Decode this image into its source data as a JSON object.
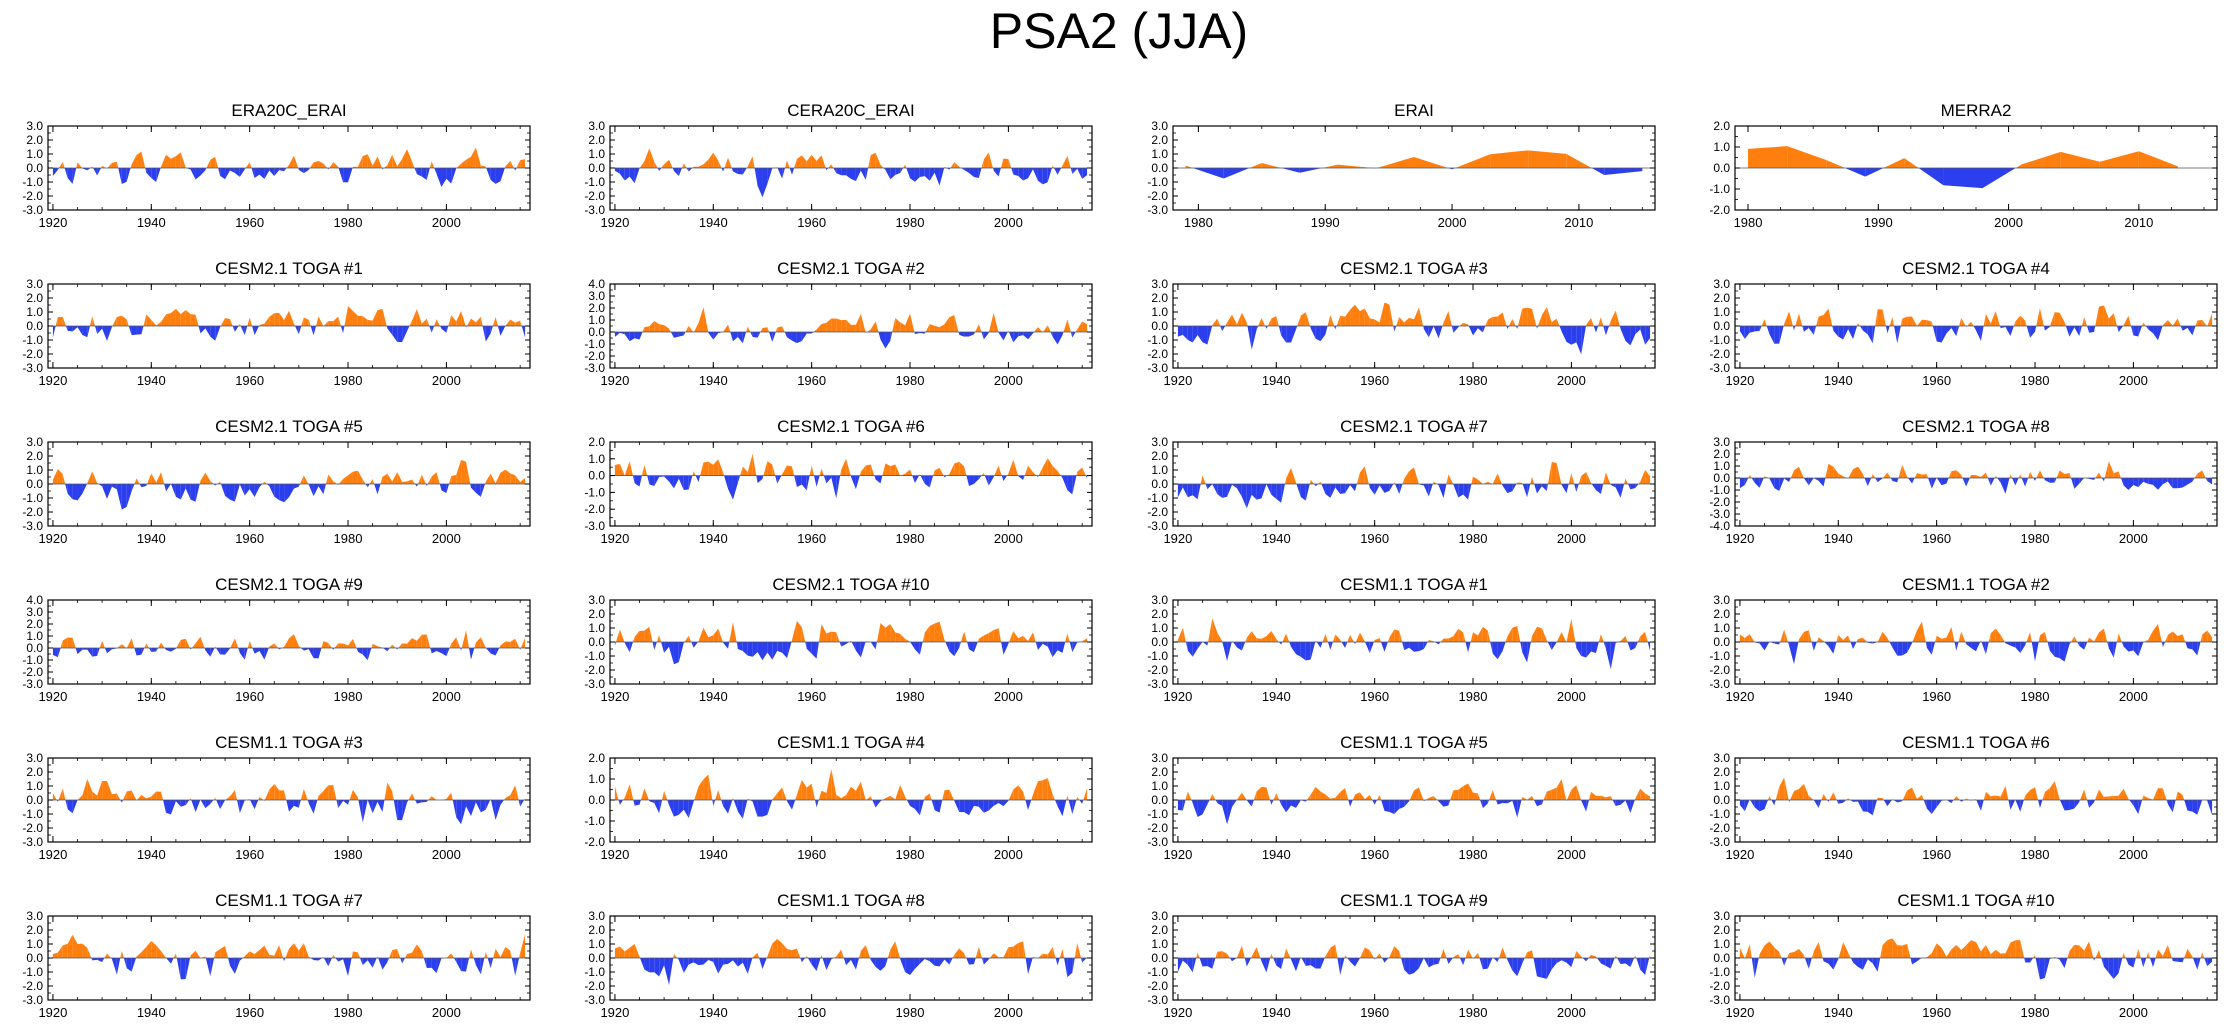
{
  "title": "PSA2 (JJA)",
  "colors": {
    "positive": "#ff7f0e",
    "negative": "#2b3fee",
    "axis": "#000000"
  },
  "chart_data": [
    {
      "type": "area",
      "title": "ERA20C_ERAI",
      "xlim": [
        1919,
        2017
      ],
      "xticks": [
        1920,
        1940,
        1960,
        1980,
        2000
      ],
      "ylim": [
        -3,
        3
      ],
      "yticks": [
        "3.0",
        "2.0",
        "1.0",
        "0.0",
        "-1.0",
        "-2.0",
        "-3.0"
      ],
      "seed": 11,
      "amp": 1.1,
      "step": 1
    },
    {
      "type": "area",
      "title": "CERA20C_ERAI",
      "xlim": [
        1919,
        2017
      ],
      "xticks": [
        1920,
        1940,
        1960,
        1980,
        2000
      ],
      "ylim": [
        -3,
        3
      ],
      "yticks": [
        "3.0",
        "2.0",
        "1.0",
        "0.0",
        "-1.0",
        "-2.0",
        "-3.0"
      ],
      "seed": 12,
      "amp": 1.1,
      "step": 1
    },
    {
      "type": "area",
      "title": "ERAI",
      "xlim": [
        1978,
        2016
      ],
      "xticks": [
        1980,
        1990,
        2000,
        2010
      ],
      "ylim": [
        -3,
        3
      ],
      "yticks": [
        "3.0",
        "2.0",
        "1.0",
        "0.0",
        "-1.0",
        "-2.0",
        "-3.0"
      ],
      "seed": 13,
      "amp": 1.2,
      "step": 3
    },
    {
      "type": "area",
      "title": "MERRA2",
      "xlim": [
        1979,
        2016
      ],
      "xticks": [
        1980,
        1990,
        2000,
        2010
      ],
      "ylim": [
        -2,
        2
      ],
      "yticks": [
        "2.0",
        "1.0",
        "0.0",
        "-1.0",
        "-2.0"
      ],
      "seed": 14,
      "amp": 1.1,
      "step": 3
    },
    {
      "type": "area",
      "title": "CESM2.1 TOGA #1",
      "xlim": [
        1919,
        2017
      ],
      "xticks": [
        1920,
        1940,
        1960,
        1980,
        2000
      ],
      "ylim": [
        -3,
        3
      ],
      "yticks": [
        "3.0",
        "2.0",
        "1.0",
        "0.0",
        "-1.0",
        "-2.0",
        "-3.0"
      ],
      "seed": 21,
      "amp": 1.2,
      "step": 1
    },
    {
      "type": "area",
      "title": "CESM2.1 TOGA #2",
      "xlim": [
        1919,
        2017
      ],
      "xticks": [
        1920,
        1940,
        1960,
        1980,
        2000
      ],
      "ylim": [
        -3,
        4
      ],
      "yticks": [
        "4.0",
        "3.0",
        "2.0",
        "1.0",
        "0.0",
        "-1.0",
        "-2.0",
        "-3.0"
      ],
      "seed": 22,
      "amp": 1.2,
      "step": 1
    },
    {
      "type": "area",
      "title": "CESM2.1 TOGA #3",
      "xlim": [
        1919,
        2017
      ],
      "xticks": [
        1920,
        1940,
        1960,
        1980,
        2000
      ],
      "ylim": [
        -3,
        3
      ],
      "yticks": [
        "3.0",
        "2.0",
        "1.0",
        "0.0",
        "-1.0",
        "-2.0",
        "-3.0"
      ],
      "seed": 23,
      "amp": 1.2,
      "step": 1
    },
    {
      "type": "area",
      "title": "CESM2.1 TOGA #4",
      "xlim": [
        1919,
        2017
      ],
      "xticks": [
        1920,
        1940,
        1960,
        1980,
        2000
      ],
      "ylim": [
        -3,
        3
      ],
      "yticks": [
        "3.0",
        "2.0",
        "1.0",
        "0.0",
        "-1.0",
        "-2.0",
        "-3.0"
      ],
      "seed": 24,
      "amp": 1.2,
      "step": 1
    },
    {
      "type": "area",
      "title": "CESM2.1 TOGA #5",
      "xlim": [
        1919,
        2017
      ],
      "xticks": [
        1920,
        1940,
        1960,
        1980,
        2000
      ],
      "ylim": [
        -3,
        3
      ],
      "yticks": [
        "3.0",
        "2.0",
        "1.0",
        "0.0",
        "-1.0",
        "-2.0",
        "-3.0"
      ],
      "seed": 31,
      "amp": 1.2,
      "step": 1
    },
    {
      "type": "area",
      "title": "CESM2.1 TOGA #6",
      "xlim": [
        1919,
        2017
      ],
      "xticks": [
        1920,
        1940,
        1960,
        1980,
        2000
      ],
      "ylim": [
        -3,
        2
      ],
      "yticks": [
        "2.0",
        "1.0",
        "0.0",
        "-1.0",
        "-2.0",
        "-3.0"
      ],
      "seed": 32,
      "amp": 1.1,
      "step": 1
    },
    {
      "type": "area",
      "title": "CESM2.1 TOGA #7",
      "xlim": [
        1919,
        2017
      ],
      "xticks": [
        1920,
        1940,
        1960,
        1980,
        2000
      ],
      "ylim": [
        -3,
        3
      ],
      "yticks": [
        "3.0",
        "2.0",
        "1.0",
        "0.0",
        "-1.0",
        "-2.0",
        "-3.0"
      ],
      "seed": 33,
      "amp": 1.2,
      "step": 1
    },
    {
      "type": "area",
      "title": "CESM2.1 TOGA #8",
      "xlim": [
        1919,
        2017
      ],
      "xticks": [
        1920,
        1940,
        1960,
        1980,
        2000
      ],
      "ylim": [
        -4,
        3
      ],
      "yticks": [
        "3.0",
        "2.0",
        "1.0",
        "0.0",
        "-1.0",
        "-2.0",
        "-3.0",
        "-4.0"
      ],
      "seed": 34,
      "amp": 1.0,
      "step": 1
    },
    {
      "type": "area",
      "title": "CESM2.1 TOGA #9",
      "xlim": [
        1919,
        2017
      ],
      "xticks": [
        1920,
        1940,
        1960,
        1980,
        2000
      ],
      "ylim": [
        -3,
        4
      ],
      "yticks": [
        "4.0",
        "3.0",
        "2.0",
        "1.0",
        "0.0",
        "-1.0",
        "-2.0",
        "-3.0"
      ],
      "seed": 41,
      "amp": 1.1,
      "step": 1
    },
    {
      "type": "area",
      "title": "CESM2.1 TOGA #10",
      "xlim": [
        1919,
        2017
      ],
      "xticks": [
        1920,
        1940,
        1960,
        1980,
        2000
      ],
      "ylim": [
        -3,
        3
      ],
      "yticks": [
        "3.0",
        "2.0",
        "1.0",
        "0.0",
        "-1.0",
        "-2.0",
        "-3.0"
      ],
      "seed": 42,
      "amp": 1.2,
      "step": 1
    },
    {
      "type": "area",
      "title": "CESM1.1 TOGA #1",
      "xlim": [
        1919,
        2017
      ],
      "xticks": [
        1920,
        1940,
        1960,
        1980,
        2000
      ],
      "ylim": [
        -3,
        3
      ],
      "yticks": [
        "3.0",
        "2.0",
        "1.0",
        "0.0",
        "-1.0",
        "-2.0",
        "-3.0"
      ],
      "seed": 43,
      "amp": 1.2,
      "step": 1
    },
    {
      "type": "area",
      "title": "CESM1.1 TOGA #2",
      "xlim": [
        1919,
        2017
      ],
      "xticks": [
        1920,
        1940,
        1960,
        1980,
        2000
      ],
      "ylim": [
        -3,
        3
      ],
      "yticks": [
        "3.0",
        "2.0",
        "1.0",
        "0.0",
        "-1.0",
        "-2.0",
        "-3.0"
      ],
      "seed": 44,
      "amp": 1.2,
      "step": 1
    },
    {
      "type": "area",
      "title": "CESM1.1 TOGA #3",
      "xlim": [
        1919,
        2017
      ],
      "xticks": [
        1920,
        1940,
        1960,
        1980,
        2000
      ],
      "ylim": [
        -3,
        3
      ],
      "yticks": [
        "3.0",
        "2.0",
        "1.0",
        "0.0",
        "-1.0",
        "-2.0",
        "-3.0"
      ],
      "seed": 51,
      "amp": 1.2,
      "step": 1
    },
    {
      "type": "area",
      "title": "CESM1.1 TOGA #4",
      "xlim": [
        1919,
        2017
      ],
      "xticks": [
        1920,
        1940,
        1960,
        1980,
        2000
      ],
      "ylim": [
        -2,
        2
      ],
      "yticks": [
        "2.0",
        "1.0",
        "0.0",
        "-1.0",
        "-2.0"
      ],
      "seed": 52,
      "amp": 0.9,
      "step": 1
    },
    {
      "type": "area",
      "title": "CESM1.1 TOGA #5",
      "xlim": [
        1919,
        2017
      ],
      "xticks": [
        1920,
        1940,
        1960,
        1980,
        2000
      ],
      "ylim": [
        -3,
        3
      ],
      "yticks": [
        "3.0",
        "2.0",
        "1.0",
        "0.0",
        "-1.0",
        "-2.0",
        "-3.0"
      ],
      "seed": 53,
      "amp": 1.1,
      "step": 1
    },
    {
      "type": "area",
      "title": "CESM1.1 TOGA #6",
      "xlim": [
        1919,
        2017
      ],
      "xticks": [
        1920,
        1940,
        1960,
        1980,
        2000
      ],
      "ylim": [
        -3,
        3
      ],
      "yticks": [
        "3.0",
        "2.0",
        "1.0",
        "0.0",
        "-1.0",
        "-2.0",
        "-3.0"
      ],
      "seed": 54,
      "amp": 1.1,
      "step": 1
    },
    {
      "type": "area",
      "title": "CESM1.1 TOGA #7",
      "xlim": [
        1919,
        2017
      ],
      "xticks": [
        1920,
        1940,
        1960,
        1980,
        2000
      ],
      "ylim": [
        -3,
        3
      ],
      "yticks": [
        "3.0",
        "2.0",
        "1.0",
        "0.0",
        "-1.0",
        "-2.0",
        "-3.0"
      ],
      "seed": 61,
      "amp": 1.2,
      "step": 1
    },
    {
      "type": "area",
      "title": "CESM1.1 TOGA #8",
      "xlim": [
        1919,
        2017
      ],
      "xticks": [
        1920,
        1940,
        1960,
        1980,
        2000
      ],
      "ylim": [
        -3,
        3
      ],
      "yticks": [
        "3.0",
        "2.0",
        "1.0",
        "0.0",
        "-1.0",
        "-2.0",
        "-3.0"
      ],
      "seed": 62,
      "amp": 1.2,
      "step": 1
    },
    {
      "type": "area",
      "title": "CESM1.1 TOGA #9",
      "xlim": [
        1919,
        2017
      ],
      "xticks": [
        1920,
        1940,
        1960,
        1980,
        2000
      ],
      "ylim": [
        -3,
        3
      ],
      "yticks": [
        "3.0",
        "2.0",
        "1.0",
        "0.0",
        "-1.0",
        "-2.0",
        "-3.0"
      ],
      "seed": 63,
      "amp": 1.2,
      "step": 1
    },
    {
      "type": "area",
      "title": "CESM1.1 TOGA #10",
      "xlim": [
        1919,
        2017
      ],
      "xticks": [
        1920,
        1940,
        1960,
        1980,
        2000
      ],
      "ylim": [
        -3,
        3
      ],
      "yticks": [
        "3.0",
        "2.0",
        "1.0",
        "0.0",
        "-1.0",
        "-2.0",
        "-3.0"
      ],
      "seed": 64,
      "amp": 1.2,
      "step": 1
    }
  ]
}
